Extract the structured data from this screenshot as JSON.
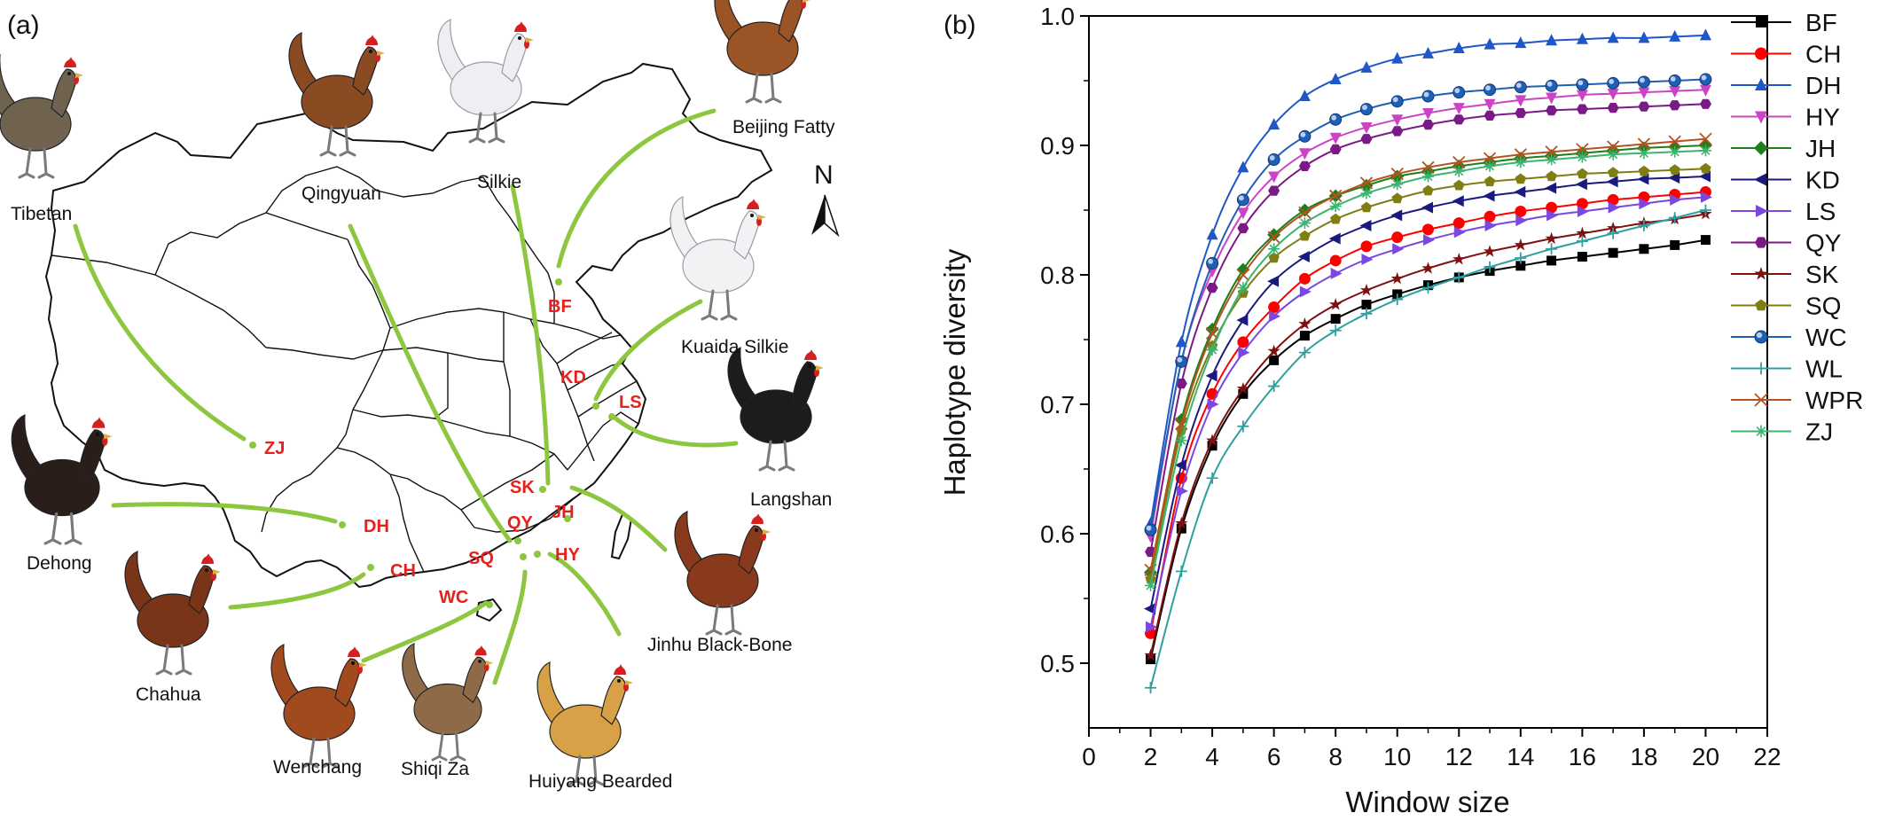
{
  "panel_a": {
    "label": "(a)",
    "north_label": "N",
    "breeds": [
      {
        "key": "tibetan",
        "name": "Tibetan",
        "code": "ZJ",
        "color": "#6f6350"
      },
      {
        "key": "qingyuan",
        "name": "Qingyuan",
        "code": "QY",
        "color": "#8a4a22"
      },
      {
        "key": "silkie",
        "name": "Silkie",
        "code": "SK",
        "color": "#efeef3"
      },
      {
        "key": "beijing-fatty",
        "name": "Beijing Fatty",
        "code": "BF",
        "color": "#9a5426"
      },
      {
        "key": "kuaida-silkie",
        "name": "Kuaida Silkie",
        "code": "KD",
        "color": "#f2f2f4"
      },
      {
        "key": "langshan",
        "name": "Langshan",
        "code": "LS",
        "color": "#1c1c1e"
      },
      {
        "key": "dehong",
        "name": "Dehong",
        "code": "DH",
        "color": "#2a1e1a"
      },
      {
        "key": "chahua",
        "name": "Chahua",
        "code": "CH",
        "color": "#7a3418"
      },
      {
        "key": "jinhu-black-bone",
        "name": "Jinhu Black-Bone",
        "code": "JH",
        "color": "#8a3a1c"
      },
      {
        "key": "wenchang",
        "name": "Wenchang",
        "code": "WC",
        "color": "#a04a1e"
      },
      {
        "key": "shiqi-za",
        "name": "Shiqi Za",
        "code": "SQ",
        "color": "#8f6a48"
      },
      {
        "key": "huiyang-bearded",
        "name": "Huiyang Bearded",
        "code": "HY",
        "color": "#d8a148"
      }
    ],
    "extra_codes": [
      "BF",
      "KD",
      "LS",
      "ZJ",
      "SK",
      "QY",
      "JH",
      "DH",
      "CH",
      "SQ",
      "HY",
      "WC"
    ]
  },
  "chart_data": {
    "type": "line",
    "panel_label": "(b)",
    "xlabel": "Window size",
    "ylabel": "Haplotype diversity",
    "xlim": [
      0,
      22
    ],
    "ylim": [
      0.45,
      1.0
    ],
    "xticks": [
      0,
      2,
      4,
      6,
      8,
      10,
      12,
      14,
      16,
      18,
      20,
      22
    ],
    "yticks": [
      0.5,
      0.6,
      0.7,
      0.8,
      0.9,
      1.0
    ],
    "ytick_labels": [
      "0.5",
      "0.6",
      "0.7",
      "0.8",
      "0.9",
      "1.0"
    ],
    "legend_position": "right",
    "x": [
      2,
      3,
      4,
      5,
      6,
      7,
      8,
      9,
      10,
      11,
      12,
      13,
      14,
      15,
      16,
      17,
      18,
      19,
      20
    ],
    "series": [
      {
        "name": "BF",
        "color": "#000000",
        "marker": "square",
        "values": [
          0.503,
          0.604,
          0.668,
          0.708,
          0.734,
          0.753,
          0.766,
          0.777,
          0.785,
          0.792,
          0.798,
          0.803,
          0.807,
          0.811,
          0.814,
          0.817,
          0.82,
          0.823,
          0.827
        ]
      },
      {
        "name": "CH",
        "color": "#ff0000",
        "marker": "circle",
        "values": [
          0.523,
          0.643,
          0.708,
          0.748,
          0.775,
          0.797,
          0.811,
          0.822,
          0.829,
          0.835,
          0.84,
          0.845,
          0.849,
          0.852,
          0.855,
          0.858,
          0.86,
          0.862,
          0.864
        ]
      },
      {
        "name": "DH",
        "color": "#1f57c8",
        "marker": "triangle-up",
        "values": [
          0.608,
          0.748,
          0.831,
          0.883,
          0.916,
          0.938,
          0.951,
          0.96,
          0.967,
          0.971,
          0.975,
          0.978,
          0.979,
          0.981,
          0.982,
          0.983,
          0.983,
          0.984,
          0.985
        ]
      },
      {
        "name": "HY",
        "color": "#cc44c4",
        "marker": "triangle-down",
        "values": [
          0.598,
          0.733,
          0.803,
          0.848,
          0.876,
          0.894,
          0.906,
          0.914,
          0.92,
          0.925,
          0.929,
          0.932,
          0.935,
          0.937,
          0.939,
          0.94,
          0.941,
          0.942,
          0.943
        ]
      },
      {
        "name": "JH",
        "color": "#1b7f1b",
        "marker": "diamond",
        "values": [
          0.57,
          0.688,
          0.758,
          0.804,
          0.831,
          0.85,
          0.861,
          0.869,
          0.876,
          0.88,
          0.884,
          0.887,
          0.89,
          0.892,
          0.894,
          0.896,
          0.898,
          0.899,
          0.9
        ]
      },
      {
        "name": "KD",
        "color": "#1a1a7e",
        "marker": "triangle-left",
        "values": [
          0.542,
          0.653,
          0.722,
          0.765,
          0.795,
          0.814,
          0.828,
          0.838,
          0.846,
          0.852,
          0.857,
          0.861,
          0.864,
          0.867,
          0.87,
          0.872,
          0.874,
          0.875,
          0.876
        ]
      },
      {
        "name": "LS",
        "color": "#7b47e0",
        "marker": "triangle-right",
        "values": [
          0.528,
          0.633,
          0.7,
          0.74,
          0.768,
          0.787,
          0.801,
          0.812,
          0.82,
          0.827,
          0.833,
          0.838,
          0.842,
          0.846,
          0.849,
          0.852,
          0.855,
          0.858,
          0.86
        ]
      },
      {
        "name": "QY",
        "color": "#7a1a86",
        "marker": "hexagon",
        "values": [
          0.586,
          0.716,
          0.79,
          0.836,
          0.865,
          0.884,
          0.897,
          0.905,
          0.911,
          0.916,
          0.92,
          0.923,
          0.925,
          0.927,
          0.928,
          0.929,
          0.93,
          0.931,
          0.932
        ]
      },
      {
        "name": "SK",
        "color": "#7e1010",
        "marker": "star",
        "values": [
          0.506,
          0.608,
          0.672,
          0.712,
          0.741,
          0.762,
          0.777,
          0.788,
          0.797,
          0.805,
          0.812,
          0.818,
          0.823,
          0.828,
          0.832,
          0.836,
          0.84,
          0.843,
          0.847
        ]
      },
      {
        "name": "SQ",
        "color": "#7e7e12",
        "marker": "pentagon",
        "values": [
          0.565,
          0.68,
          0.745,
          0.786,
          0.813,
          0.83,
          0.843,
          0.852,
          0.859,
          0.865,
          0.869,
          0.872,
          0.874,
          0.876,
          0.878,
          0.879,
          0.88,
          0.881,
          0.882
        ]
      },
      {
        "name": "WC",
        "color": "#1f5fb4",
        "marker": "sphere",
        "values": [
          0.603,
          0.733,
          0.809,
          0.858,
          0.889,
          0.907,
          0.92,
          0.928,
          0.934,
          0.938,
          0.941,
          0.943,
          0.945,
          0.946,
          0.947,
          0.948,
          0.949,
          0.95,
          0.951
        ]
      },
      {
        "name": "WL",
        "color": "#2fa0a0",
        "marker": "plus",
        "values": [
          0.481,
          0.571,
          0.643,
          0.683,
          0.714,
          0.74,
          0.757,
          0.77,
          0.781,
          0.79,
          0.798,
          0.806,
          0.813,
          0.82,
          0.826,
          0.832,
          0.838,
          0.844,
          0.85
        ]
      },
      {
        "name": "WPR",
        "color": "#b5521f",
        "marker": "x",
        "values": [
          0.572,
          0.685,
          0.755,
          0.8,
          0.829,
          0.848,
          0.861,
          0.871,
          0.878,
          0.883,
          0.887,
          0.89,
          0.893,
          0.895,
          0.897,
          0.899,
          0.901,
          0.903,
          0.905
        ]
      },
      {
        "name": "ZJ",
        "color": "#3cb371",
        "marker": "asterisk",
        "values": [
          0.56,
          0.672,
          0.742,
          0.79,
          0.82,
          0.84,
          0.853,
          0.863,
          0.87,
          0.876,
          0.88,
          0.884,
          0.887,
          0.889,
          0.891,
          0.893,
          0.894,
          0.895,
          0.896
        ]
      }
    ]
  }
}
